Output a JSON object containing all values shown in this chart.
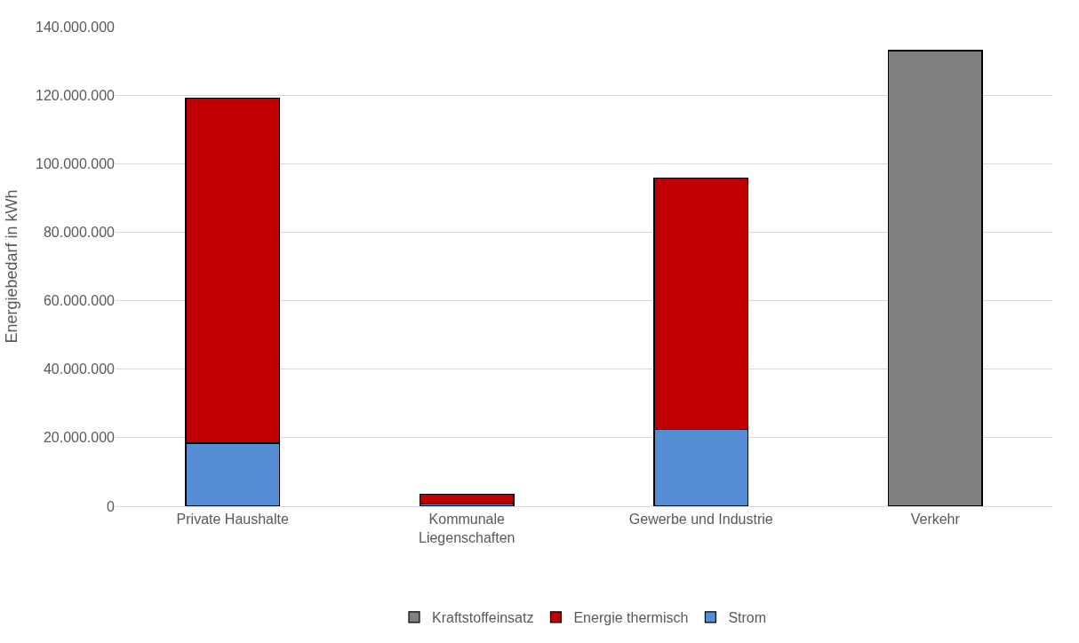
{
  "chart_data": {
    "type": "bar",
    "stacked": true,
    "ylabel": "Energiebedarf in kWh",
    "categories": [
      "Private Haushalte",
      "Kommunale Liegenschaften",
      "Gewerbe und Industrie",
      "Verkehr"
    ],
    "series": [
      {
        "name": "Strom",
        "color": "#558ed5",
        "values": [
          18400000,
          600000,
          22500000,
          null
        ]
      },
      {
        "name": "Energie thermisch",
        "color": "#c00000",
        "values": [
          100800000,
          2800000,
          73200000,
          null
        ]
      },
      {
        "name": "Kraftstoffeinsatz",
        "color": "#808080",
        "values": [
          null,
          null,
          null,
          133000000
        ]
      }
    ],
    "ylim": [
      0,
      140000000
    ],
    "yticks": [
      {
        "value": 0,
        "label": "0"
      },
      {
        "value": 20000000,
        "label": "20.000.000"
      },
      {
        "value": 40000000,
        "label": "40.000.000"
      },
      {
        "value": 60000000,
        "label": "60.000.000"
      },
      {
        "value": 80000000,
        "label": "80.000.000"
      },
      {
        "value": 100000000,
        "label": "100.000.000"
      },
      {
        "value": 120000000,
        "label": "120.000.000"
      },
      {
        "value": 140000000,
        "label": "140.000.000"
      }
    ],
    "grid": "y",
    "legend": "bottom"
  }
}
